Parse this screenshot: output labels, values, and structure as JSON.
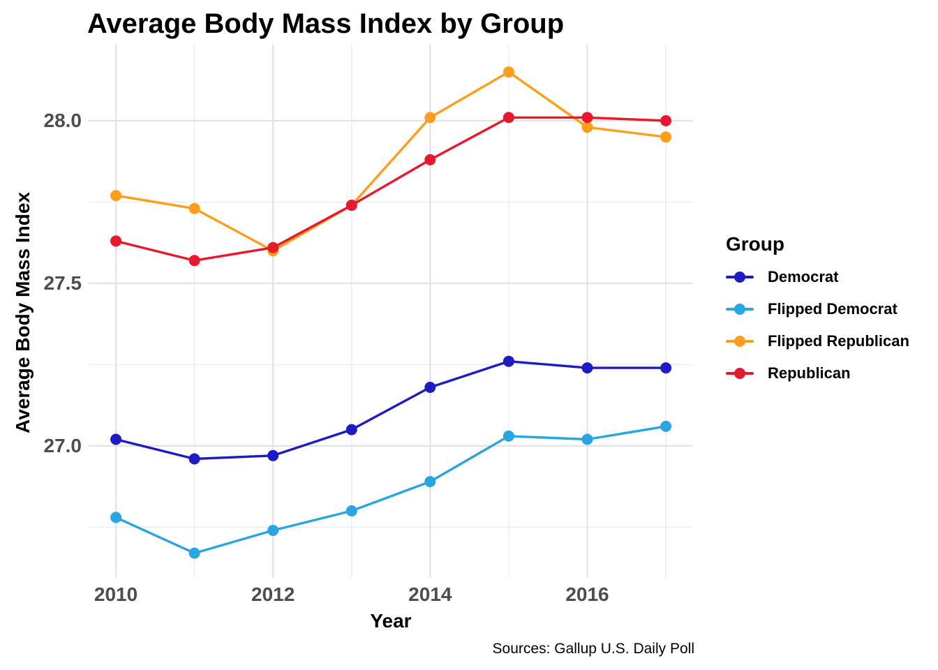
{
  "title": "Average Body Mass Index by Group",
  "caption": "Sources: Gallup U.S. Daily Poll",
  "chart_data": {
    "type": "line",
    "title": "Average Body Mass Index by Group",
    "xlabel": "Year",
    "ylabel": "Average Body Mass Index",
    "legend_title": "Group",
    "legend_position": "right",
    "grid": true,
    "background": "#ffffff",
    "grid_major_color": "#E3E3E3",
    "grid_minor_color": "#ECECEC",
    "tick_label_color": "#4D4D4D",
    "x": [
      2010,
      2011,
      2012,
      2013,
      2014,
      2015,
      2016,
      2017
    ],
    "x_ticks": [
      "2010",
      "2012",
      "2014",
      "2016"
    ],
    "y_ticks": [
      "28.0",
      "27.5",
      "27.0"
    ],
    "y_major": [
      28.0,
      27.5,
      27.0
    ],
    "y_minor": [
      27.75,
      27.25,
      26.75
    ],
    "xlim": [
      2009.653,
      2017.346
    ],
    "ylim": [
      26.594,
      28.234
    ],
    "series": [
      {
        "name": "Democrat",
        "color": "#1C1CC2",
        "values": [
          27.02,
          26.96,
          26.97,
          27.05,
          27.18,
          27.26,
          27.24,
          27.24
        ]
      },
      {
        "name": "Flipped Democrat",
        "color": "#29A5E1",
        "values": [
          26.78,
          26.67,
          26.74,
          26.8,
          26.89,
          27.03,
          27.02,
          27.06
        ]
      },
      {
        "name": "Flipped Republican",
        "color": "#FF9E1B",
        "values": [
          27.77,
          27.73,
          27.6,
          27.74,
          28.01,
          28.15,
          27.98,
          27.95
        ]
      },
      {
        "name": "Republican",
        "color": "#E8182D",
        "values": [
          27.63,
          27.57,
          27.61,
          27.74,
          27.88,
          28.01,
          28.01,
          28.0
        ]
      }
    ]
  }
}
